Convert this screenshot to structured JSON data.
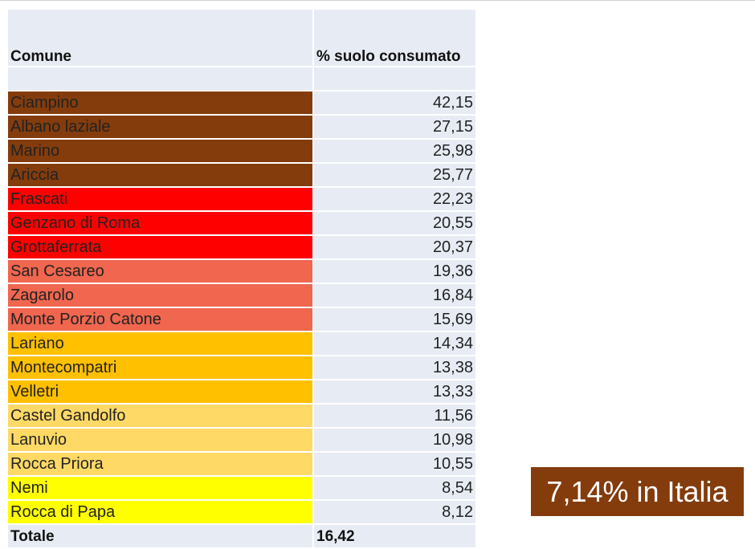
{
  "table": {
    "headers": [
      "Comune",
      "% suolo consumato"
    ],
    "rows": [
      {
        "comune": "Ciampino",
        "valore": "42,15",
        "color": "#843C0C"
      },
      {
        "comune": "Albano laziale",
        "valore": "27,15",
        "color": "#843C0C"
      },
      {
        "comune": "Marino",
        "valore": "25,98",
        "color": "#843C0C"
      },
      {
        "comune": "Ariccia",
        "valore": "25,77",
        "color": "#843C0C"
      },
      {
        "comune": "Frascati",
        "valore": "22,23",
        "color": "#FF0000"
      },
      {
        "comune": "Genzano di Roma",
        "valore": "20,55",
        "color": "#FF0000"
      },
      {
        "comune": "Grottaferrata",
        "valore": "20,37",
        "color": "#FF0000"
      },
      {
        "comune": "San Cesareo",
        "valore": "19,36",
        "color": "#F0664F"
      },
      {
        "comune": "Zagarolo",
        "valore": "16,84",
        "color": "#F0664F"
      },
      {
        "comune": "Monte Porzio Catone",
        "valore": "15,69",
        "color": "#F0664F"
      },
      {
        "comune": "Lariano",
        "valore": "14,34",
        "color": "#FFC000"
      },
      {
        "comune": "Montecompatri",
        "valore": "13,38",
        "color": "#FFC000"
      },
      {
        "comune": "Velletri",
        "valore": "13,33",
        "color": "#FFC000"
      },
      {
        "comune": "Castel Gandolfo",
        "valore": "11,56",
        "color": "#FFD966"
      },
      {
        "comune": "Lanuvio",
        "valore": "10,98",
        "color": "#FFD966"
      },
      {
        "comune": "Rocca Priora",
        "valore": "10,55",
        "color": "#FFD966"
      },
      {
        "comune": "Nemi",
        "valore": "8,54",
        "color": "#FFFF00"
      },
      {
        "comune": "Rocca di Papa",
        "valore": "8,12",
        "color": "#FFFF00"
      }
    ],
    "total_label": "Totale",
    "total_value": "16,42"
  },
  "badge": {
    "text": "7,14% in Italia",
    "color": "#843C0C"
  }
}
